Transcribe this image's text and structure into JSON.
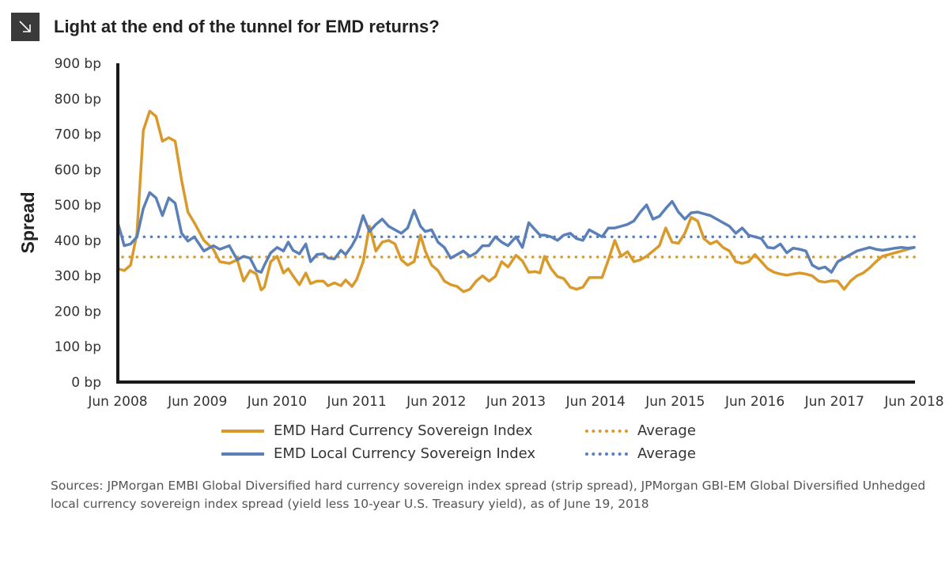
{
  "header": {
    "title": "Light at the end of the tunnel for EMD returns?",
    "icon": "arrow-down-right-icon"
  },
  "sources": "Sources: JPMorgan EMBI Global Diversified hard currency sovereign index spread (strip spread), JPMorgan GBI-EM Global Diversified Unhedged local currency sovereign index spread (yield less 10-year U.S. Treasury yield), as of June 19, 2018",
  "legend": {
    "hard": "EMD Hard Currency Sovereign Index",
    "hard_avg": "Average",
    "local": "EMD Local Currency Sovereign Index",
    "local_avg": "Average"
  },
  "colors": {
    "hard": "#D99A2B",
    "local": "#5B80B8",
    "axis": "#1a1a1a"
  },
  "chart_data": {
    "type": "line",
    "title": "Light at the end of the tunnel for EMD returns?",
    "ylabel": "Spread",
    "xlabel": "",
    "ylim": [
      0,
      900
    ],
    "y_ticks": [
      0,
      100,
      200,
      300,
      400,
      500,
      600,
      700,
      800,
      900
    ],
    "y_tick_labels": [
      "0 bp",
      "100 bp",
      "200 bp",
      "300 bp",
      "400 bp",
      "500 bp",
      "600 bp",
      "700 bp",
      "800 bp",
      "900 bp"
    ],
    "x_range": [
      2008.46,
      2018.47
    ],
    "x_ticks": [
      2008.46,
      2009.46,
      2010.46,
      2011.46,
      2012.46,
      2013.46,
      2014.46,
      2015.46,
      2016.46,
      2017.46,
      2018.46
    ],
    "x_tick_labels": [
      "Jun 2008",
      "Jun 2009",
      "Jun 2010",
      "Jun 2011",
      "Jun 2012",
      "Jun 2013",
      "Jun 2014",
      "Jun 2015",
      "Jun 2016",
      "Jun 2017",
      "Jun 2018"
    ],
    "grid": false,
    "legend_position": "bottom",
    "series": [
      {
        "name": "EMD Hard Currency Sovereign Index",
        "style": "solid",
        "x": [
          2008.46,
          2008.54,
          2008.62,
          2008.7,
          2008.78,
          2008.86,
          2008.94,
          2009.02,
          2009.1,
          2009.18,
          2009.26,
          2009.34,
          2009.42,
          2009.54,
          2009.66,
          2009.74,
          2009.86,
          2009.96,
          2010.04,
          2010.12,
          2010.2,
          2010.26,
          2010.3,
          2010.38,
          2010.46,
          2010.54,
          2010.6,
          2010.66,
          2010.74,
          2010.82,
          2010.88,
          2010.96,
          2011.04,
          2011.1,
          2011.18,
          2011.26,
          2011.32,
          2011.4,
          2011.46,
          2011.54,
          2011.62,
          2011.7,
          2011.78,
          2011.86,
          2011.94,
          2012.02,
          2012.1,
          2012.18,
          2012.26,
          2012.32,
          2012.4,
          2012.48,
          2012.56,
          2012.64,
          2012.72,
          2012.8,
          2012.88,
          2012.96,
          2013.04,
          2013.12,
          2013.2,
          2013.28,
          2013.36,
          2013.46,
          2013.54,
          2013.62,
          2013.7,
          2013.76,
          2013.82,
          2013.9,
          2013.98,
          2014.06,
          2014.14,
          2014.22,
          2014.3,
          2014.38,
          2014.46,
          2014.54,
          2014.62,
          2014.7,
          2014.78,
          2014.86,
          2014.94,
          2015.02,
          2015.1,
          2015.18,
          2015.26,
          2015.34,
          2015.42,
          2015.5,
          2015.58,
          2015.66,
          2015.74,
          2015.82,
          2015.9,
          2015.98,
          2016.06,
          2016.14,
          2016.22,
          2016.3,
          2016.38,
          2016.46,
          2016.54,
          2016.62,
          2016.7,
          2016.78,
          2016.86,
          2016.94,
          2017.02,
          2017.1,
          2017.18,
          2017.26,
          2017.34,
          2017.42,
          2017.5,
          2017.58,
          2017.66,
          2017.74,
          2017.82,
          2017.9,
          2017.98,
          2018.06,
          2018.14,
          2018.22,
          2018.3,
          2018.38,
          2018.46
        ],
        "values": [
          320,
          315,
          330,
          420,
          710,
          765,
          750,
          680,
          690,
          680,
          570,
          480,
          450,
          400,
          375,
          340,
          335,
          345,
          285,
          315,
          305,
          260,
          268,
          340,
          355,
          308,
          320,
          300,
          275,
          308,
          278,
          285,
          285,
          272,
          280,
          272,
          288,
          270,
          290,
          340,
          440,
          370,
          395,
          400,
          390,
          345,
          330,
          340,
          415,
          370,
          330,
          315,
          285,
          275,
          270,
          255,
          262,
          285,
          300,
          285,
          298,
          340,
          325,
          358,
          342,
          310,
          312,
          308,
          355,
          320,
          298,
          292,
          268,
          262,
          268,
          295,
          295,
          295,
          345,
          400,
          355,
          368,
          340,
          345,
          355,
          370,
          385,
          435,
          395,
          392,
          420,
          465,
          455,
          405,
          390,
          398,
          380,
          370,
          340,
          335,
          340,
          360,
          340,
          320,
          310,
          305,
          302,
          305,
          308,
          305,
          300,
          285,
          282,
          286,
          285,
          262,
          285,
          300,
          308,
          322,
          340,
          355,
          360,
          365,
          370,
          375,
          380
        ]
      },
      {
        "name": "EMD Local Currency Sovereign Index",
        "style": "solid",
        "x": [
          2008.46,
          2008.54,
          2008.62,
          2008.7,
          2008.78,
          2008.86,
          2008.94,
          2009.02,
          2009.1,
          2009.18,
          2009.26,
          2009.34,
          2009.42,
          2009.54,
          2009.66,
          2009.74,
          2009.86,
          2009.96,
          2010.04,
          2010.12,
          2010.2,
          2010.26,
          2010.3,
          2010.38,
          2010.46,
          2010.54,
          2010.6,
          2010.66,
          2010.74,
          2010.82,
          2010.88,
          2010.96,
          2011.04,
          2011.1,
          2011.18,
          2011.26,
          2011.32,
          2011.4,
          2011.46,
          2011.54,
          2011.62,
          2011.7,
          2011.78,
          2011.86,
          2011.94,
          2012.02,
          2012.1,
          2012.18,
          2012.26,
          2012.32,
          2012.4,
          2012.48,
          2012.56,
          2012.64,
          2012.72,
          2012.8,
          2012.88,
          2012.96,
          2013.04,
          2013.12,
          2013.2,
          2013.28,
          2013.36,
          2013.46,
          2013.54,
          2013.62,
          2013.7,
          2013.76,
          2013.82,
          2013.9,
          2013.98,
          2014.06,
          2014.14,
          2014.22,
          2014.3,
          2014.38,
          2014.46,
          2014.54,
          2014.62,
          2014.7,
          2014.78,
          2014.86,
          2014.94,
          2015.02,
          2015.1,
          2015.18,
          2015.26,
          2015.34,
          2015.42,
          2015.5,
          2015.58,
          2015.66,
          2015.74,
          2015.82,
          2015.9,
          2015.98,
          2016.06,
          2016.14,
          2016.22,
          2016.3,
          2016.38,
          2016.46,
          2016.54,
          2016.62,
          2016.7,
          2016.78,
          2016.86,
          2016.94,
          2017.02,
          2017.1,
          2017.18,
          2017.26,
          2017.34,
          2017.42,
          2017.5,
          2017.58,
          2017.66,
          2017.74,
          2017.82,
          2017.9,
          2017.98,
          2018.06,
          2018.14,
          2018.22,
          2018.3,
          2018.38,
          2018.46
        ],
        "values": [
          450,
          385,
          390,
          410,
          490,
          535,
          520,
          470,
          520,
          505,
          420,
          398,
          410,
          370,
          385,
          375,
          385,
          345,
          355,
          350,
          315,
          310,
          330,
          365,
          380,
          370,
          395,
          372,
          362,
          390,
          340,
          360,
          362,
          350,
          348,
          372,
          360,
          385,
          410,
          470,
          425,
          445,
          460,
          440,
          430,
          420,
          435,
          485,
          440,
          425,
          430,
          395,
          380,
          350,
          360,
          370,
          355,
          365,
          385,
          385,
          410,
          395,
          385,
          410,
          380,
          450,
          430,
          415,
          415,
          410,
          400,
          415,
          420,
          405,
          400,
          430,
          420,
          410,
          435,
          435,
          440,
          445,
          455,
          480,
          500,
          460,
          468,
          490,
          510,
          480,
          460,
          478,
          480,
          475,
          470,
          460,
          450,
          440,
          420,
          435,
          415,
          410,
          405,
          380,
          378,
          390,
          365,
          378,
          375,
          370,
          330,
          320,
          325,
          310,
          340,
          350,
          360,
          370,
          375,
          380,
          375,
          372,
          375,
          378,
          380,
          378,
          380
        ]
      },
      {
        "name": "Average",
        "style": "dotted",
        "for": "hard",
        "value": 353
      },
      {
        "name": "Average",
        "style": "dotted",
        "for": "local",
        "value": 410
      }
    ]
  }
}
